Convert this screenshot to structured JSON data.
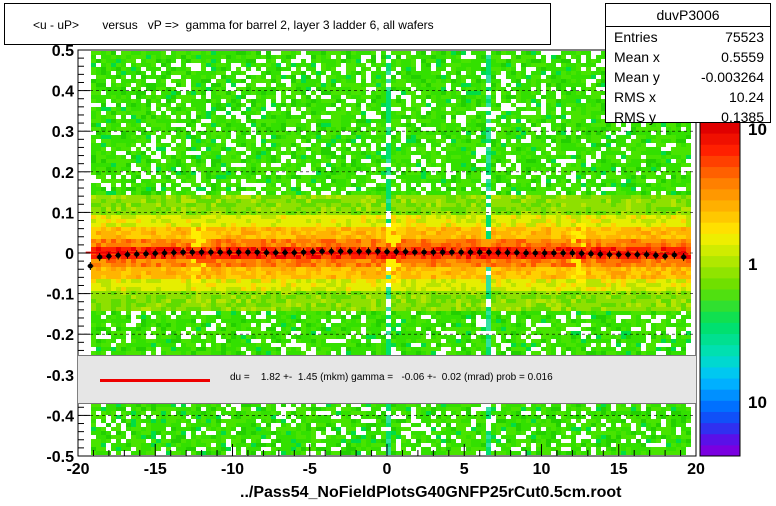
{
  "chart_data": {
    "type": "heatmap",
    "title": "<u - uP>       versus   vP =>  gamma for barrel 2, layer 3 ladder 6, all wafers",
    "xlabel": "../Pass54_NoFieldPlotsG40GNFP25rCut0.5cm.root",
    "ylabel": "",
    "xlim": [
      -20,
      20
    ],
    "ylim": [
      -0.5,
      0.5
    ],
    "x_ticks": [
      "-20",
      "-15",
      "-10",
      "-5",
      "0",
      "5",
      "10",
      "15",
      "20"
    ],
    "y_ticks": [
      "-0.5",
      "-0.4",
      "-0.3",
      "-0.2",
      "-0.1",
      "0",
      "0.1",
      "0.2",
      "0.3",
      "0.4",
      "0.5"
    ],
    "colorbar_labels": [
      "10",
      "1",
      "10"
    ],
    "grid": true,
    "profile_points": {
      "x": [
        -19.2,
        -18.6,
        -18.0,
        -17.4,
        -16.8,
        -16.2,
        -15.6,
        -15.0,
        -14.4,
        -13.8,
        -13.2,
        -12.6,
        -12.0,
        -11.4,
        -10.8,
        -10.2,
        -9.6,
        -9.0,
        -8.4,
        -7.8,
        -7.2,
        -6.6,
        -6.0,
        -5.4,
        -4.8,
        -4.2,
        -3.6,
        -3.0,
        -2.4,
        -1.8,
        -1.2,
        -0.6,
        0.0,
        0.6,
        1.2,
        1.8,
        2.4,
        3.0,
        3.6,
        4.2,
        4.8,
        5.4,
        6.0,
        6.6,
        7.2,
        7.8,
        8.4,
        9.0,
        9.6,
        10.2,
        10.8,
        11.4,
        12.0,
        12.6,
        13.2,
        13.8,
        14.4,
        15.0,
        15.6,
        16.2,
        16.8,
        17.4,
        18.0,
        18.6,
        19.2
      ],
      "y": [
        -0.032,
        -0.01,
        -0.008,
        -0.006,
        -0.004,
        -0.003,
        -0.002,
        -0.001,
        0.0,
        0.001,
        0.002,
        0.002,
        0.002,
        0.002,
        0.002,
        0.002,
        0.002,
        0.002,
        0.002,
        0.001,
        0.001,
        0.001,
        0.001,
        0.002,
        0.003,
        0.004,
        0.004,
        0.004,
        0.004,
        0.004,
        0.004,
        0.004,
        0.003,
        0.003,
        0.003,
        0.002,
        0.002,
        0.002,
        0.002,
        0.002,
        0.002,
        0.002,
        0.002,
        0.002,
        0.001,
        0.001,
        0.001,
        0.0,
        0.0,
        0.0,
        0.0,
        0.0,
        0.0,
        -0.001,
        -0.002,
        -0.003,
        -0.004,
        -0.004,
        -0.004,
        -0.004,
        -0.004,
        -0.006,
        -0.008,
        -0.005,
        -0.01
      ]
    },
    "fit": {
      "label": "du =    1.82 +-  1.45 (mkm) gamma =   -0.06 +-  0.02 (mrad) prob = 0.016",
      "color": "#ee0000"
    }
  },
  "stats": {
    "name": "duvP3006",
    "rows": [
      {
        "label": "Entries",
        "value": "75523"
      },
      {
        "label": "Mean x",
        "value": "0.5559"
      },
      {
        "label": "Mean y",
        "value": "-0.003264"
      },
      {
        "label": "RMS x",
        "value": "10.24"
      },
      {
        "label": "RMS y",
        "value": "0.1385"
      }
    ]
  }
}
